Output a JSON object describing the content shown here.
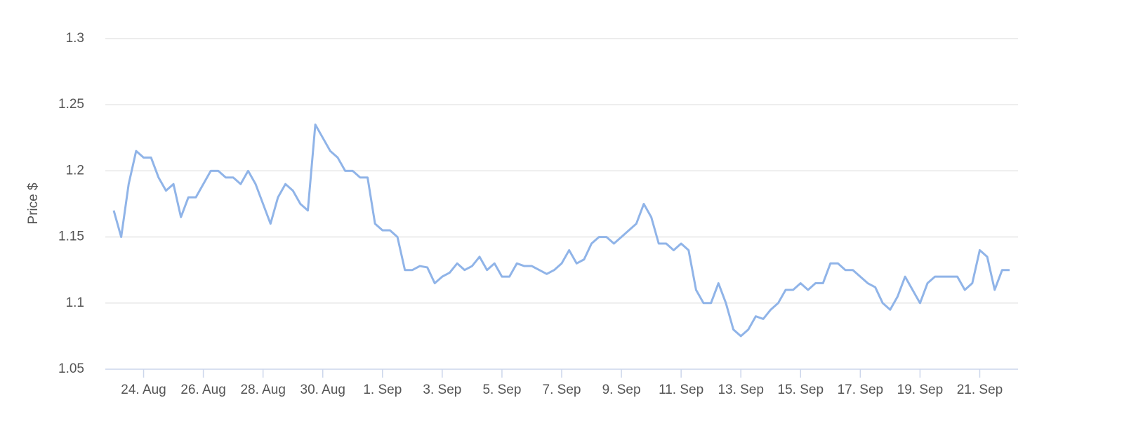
{
  "chart_data": {
    "type": "line",
    "y_label": "Price $",
    "categories": [
      null,
      null,
      null,
      null,
      "24. Aug",
      null,
      null,
      null,
      null,
      null,
      null,
      null,
      "26. Aug",
      null,
      null,
      null,
      null,
      null,
      null,
      null,
      "28. Aug",
      null,
      null,
      null,
      null,
      null,
      null,
      null,
      "30. Aug",
      null,
      null,
      null,
      null,
      null,
      null,
      null,
      "1. Sep",
      null,
      null,
      null,
      null,
      null,
      null,
      null,
      "3. Sep",
      null,
      null,
      null,
      null,
      null,
      null,
      null,
      "5. Sep",
      null,
      null,
      null,
      null,
      null,
      null,
      null,
      "7. Sep",
      null,
      null,
      null,
      null,
      null,
      null,
      null,
      "9. Sep",
      null,
      null,
      null,
      null,
      null,
      null,
      null,
      "11. Sep",
      null,
      null,
      null,
      null,
      null,
      null,
      null,
      "13. Sep",
      null,
      null,
      null,
      null,
      null,
      null,
      null,
      "15. Sep",
      null,
      null,
      null,
      null,
      null,
      null,
      null,
      "17. Sep",
      null,
      null,
      null,
      null,
      null,
      null,
      null,
      "19. Sep",
      null,
      null,
      null,
      null,
      null,
      null,
      null,
      "21. Sep",
      null,
      null,
      null,
      null
    ],
    "values": [
      1.17,
      1.15,
      1.19,
      1.215,
      1.21,
      1.21,
      1.195,
      1.185,
      1.19,
      1.165,
      1.18,
      1.18,
      1.19,
      1.2,
      1.2,
      1.195,
      1.195,
      1.19,
      1.2,
      1.19,
      1.175,
      1.16,
      1.18,
      1.19,
      1.185,
      1.175,
      1.17,
      1.235,
      1.225,
      1.215,
      1.21,
      1.2,
      1.2,
      1.195,
      1.195,
      1.16,
      1.155,
      1.155,
      1.15,
      1.125,
      1.125,
      1.128,
      1.127,
      1.115,
      1.12,
      1.123,
      1.13,
      1.125,
      1.128,
      1.135,
      1.125,
      1.13,
      1.12,
      1.12,
      1.13,
      1.128,
      1.128,
      1.125,
      1.122,
      1.125,
      1.13,
      1.14,
      1.13,
      1.133,
      1.145,
      1.15,
      1.15,
      1.145,
      1.15,
      1.155,
      1.16,
      1.175,
      1.165,
      1.145,
      1.145,
      1.14,
      1.145,
      1.14,
      1.11,
      1.1,
      1.1,
      1.115,
      1.1,
      1.08,
      1.075,
      1.08,
      1.09,
      1.088,
      1.095,
      1.1,
      1.11,
      1.11,
      1.115,
      1.11,
      1.115,
      1.115,
      1.13,
      1.13,
      1.125,
      1.125,
      1.12,
      1.115,
      1.112,
      1.1,
      1.095,
      1.105,
      1.12,
      1.11,
      1.1,
      1.115,
      1.12,
      1.12,
      1.12,
      1.12,
      1.11,
      1.115,
      1.14,
      1.135,
      1.11,
      1.125,
      1.125
    ],
    "color": "#90b4e8",
    "ylim": [
      1.05,
      1.3
    ],
    "yticks": [
      1.05,
      1.1,
      1.15,
      1.2,
      1.25,
      1.3
    ],
    "grid": true
  }
}
